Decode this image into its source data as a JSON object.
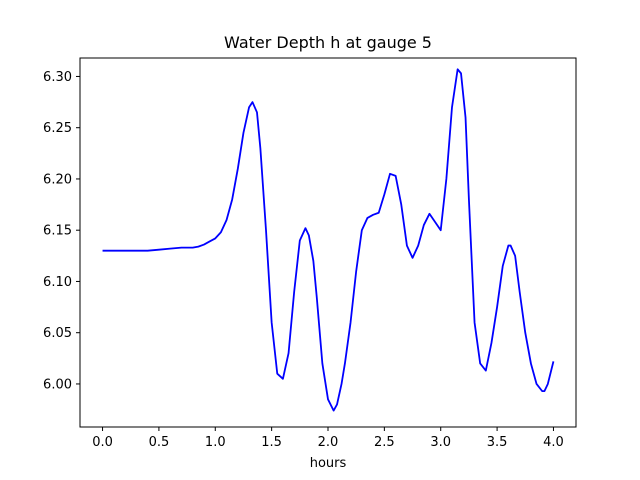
{
  "chart_data": {
    "type": "line",
    "title": "Water Depth h at gauge 5",
    "xlabel": "hours",
    "ylabel": "",
    "xlim": [
      -0.2,
      4.2
    ],
    "ylim": [
      5.958,
      6.318
    ],
    "xticks": [
      0.0,
      0.5,
      1.0,
      1.5,
      2.0,
      2.5,
      3.0,
      3.5,
      4.0
    ],
    "xtick_labels": [
      "0.0",
      "0.5",
      "1.0",
      "1.5",
      "2.0",
      "2.5",
      "3.0",
      "3.5",
      "4.0"
    ],
    "yticks": [
      6.0,
      6.05,
      6.1,
      6.15,
      6.2,
      6.25,
      6.3
    ],
    "ytick_labels": [
      "6.00",
      "6.05",
      "6.10",
      "6.15",
      "6.20",
      "6.25",
      "6.30"
    ],
    "grid": false,
    "series": [
      {
        "color": "#0000ff",
        "x": [
          0.0,
          0.2,
          0.4,
          0.5,
          0.6,
          0.7,
          0.8,
          0.85,
          0.9,
          0.95,
          1.0,
          1.05,
          1.1,
          1.15,
          1.2,
          1.25,
          1.3,
          1.33,
          1.37,
          1.4,
          1.45,
          1.5,
          1.55,
          1.6,
          1.65,
          1.7,
          1.75,
          1.8,
          1.83,
          1.87,
          1.9,
          1.95,
          2.0,
          2.05,
          2.08,
          2.12,
          2.15,
          2.2,
          2.25,
          2.3,
          2.35,
          2.4,
          2.45,
          2.5,
          2.55,
          2.6,
          2.65,
          2.7,
          2.75,
          2.8,
          2.85,
          2.9,
          2.95,
          3.0,
          3.05,
          3.1,
          3.15,
          3.18,
          3.22,
          3.25,
          3.3,
          3.35,
          3.4,
          3.45,
          3.5,
          3.55,
          3.6,
          3.62,
          3.66,
          3.7,
          3.75,
          3.8,
          3.85,
          3.9,
          3.92,
          3.95,
          4.0
        ],
        "y": [
          6.13,
          6.13,
          6.13,
          6.131,
          6.132,
          6.133,
          6.133,
          6.134,
          6.136,
          6.139,
          6.142,
          6.148,
          6.16,
          6.18,
          6.21,
          6.245,
          6.27,
          6.275,
          6.265,
          6.23,
          6.15,
          6.06,
          6.01,
          6.005,
          6.03,
          6.09,
          6.14,
          6.152,
          6.145,
          6.12,
          6.085,
          6.02,
          5.985,
          5.974,
          5.98,
          6.0,
          6.02,
          6.06,
          6.11,
          6.15,
          6.162,
          6.165,
          6.167,
          6.185,
          6.205,
          6.203,
          6.175,
          6.135,
          6.123,
          6.135,
          6.155,
          6.166,
          6.158,
          6.15,
          6.2,
          6.27,
          6.307,
          6.303,
          6.26,
          6.18,
          6.06,
          6.02,
          6.013,
          6.04,
          6.075,
          6.115,
          6.135,
          6.135,
          6.125,
          6.09,
          6.05,
          6.02,
          6.0,
          5.993,
          5.993,
          6.0,
          6.022
        ]
      }
    ]
  }
}
